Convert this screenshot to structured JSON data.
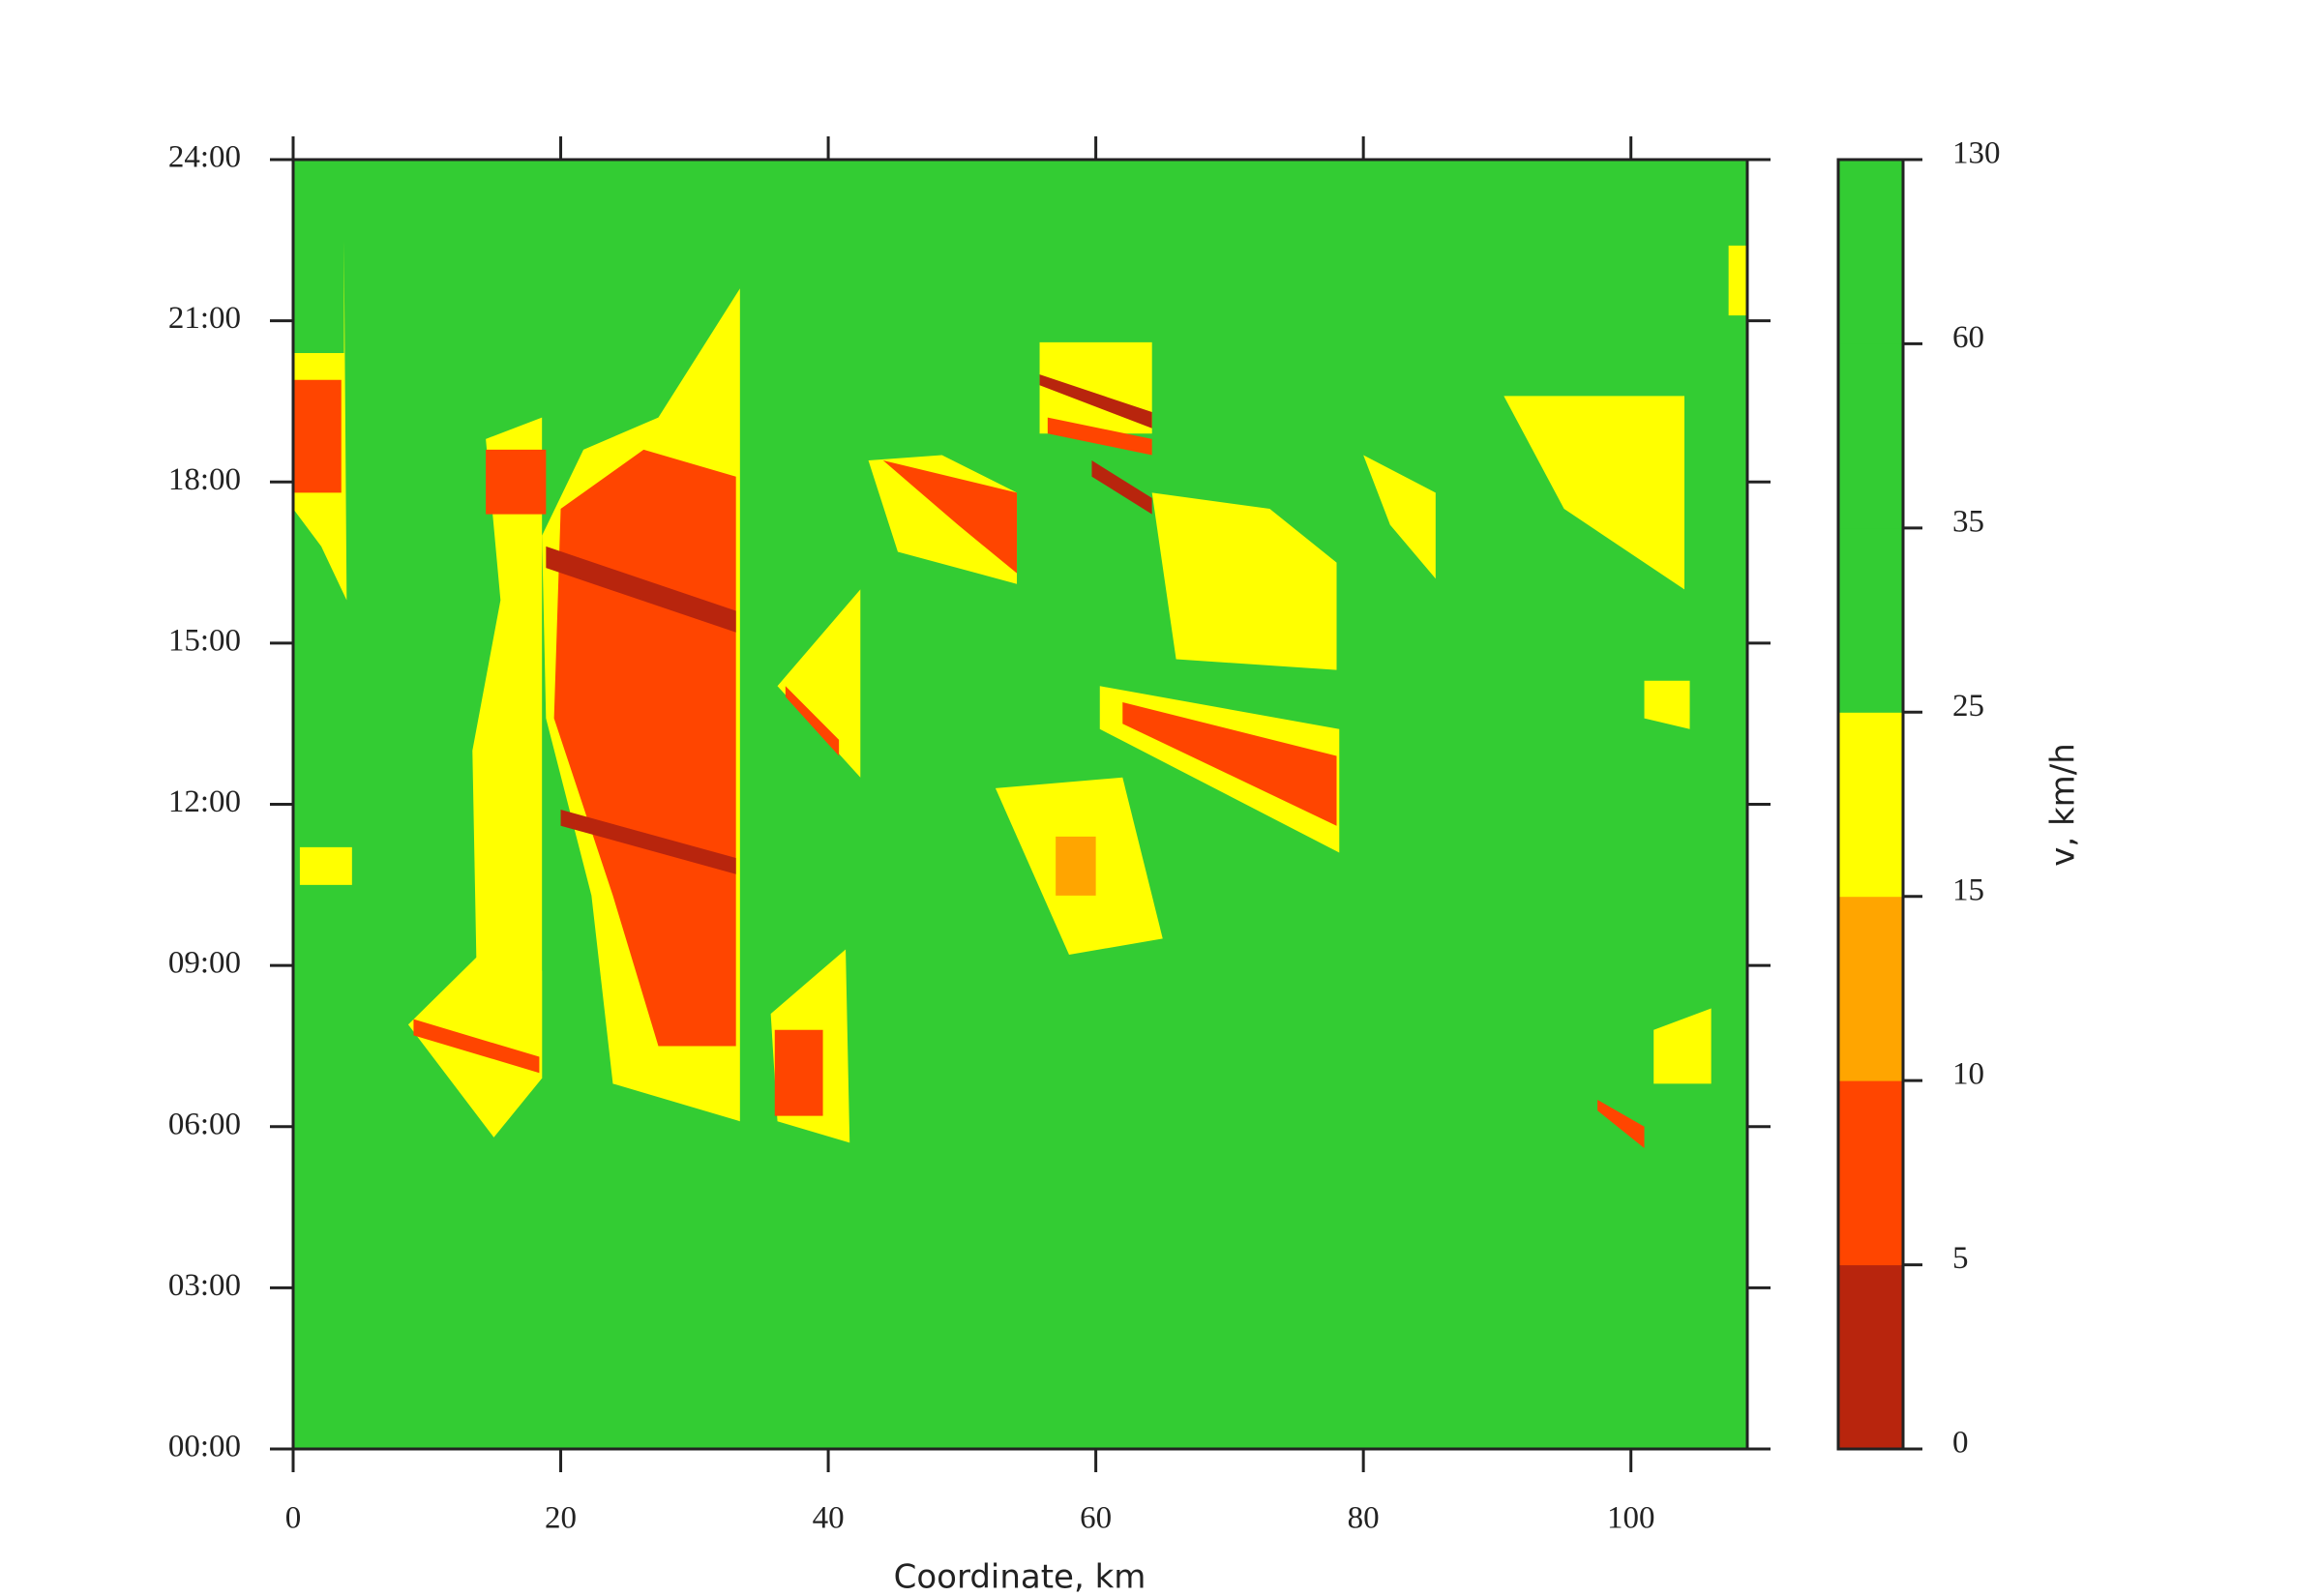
{
  "chart_data": {
    "type": "heatmap",
    "xlabel": "Coordinate, km",
    "xlim": [
      0,
      108.7
    ],
    "xticks": [
      0,
      20,
      40,
      60,
      80,
      100
    ],
    "ylim": [
      0,
      24
    ],
    "yticks": [
      {
        "value": 0,
        "label": "00:00"
      },
      {
        "value": 3,
        "label": "03:00"
      },
      {
        "value": 6,
        "label": "06:00"
      },
      {
        "value": 9,
        "label": "09:00"
      },
      {
        "value": 12,
        "label": "12:00"
      },
      {
        "value": 15,
        "label": "15:00"
      },
      {
        "value": 18,
        "label": "18:00"
      },
      {
        "value": 21,
        "label": "21:00"
      },
      {
        "value": 24,
        "label": "24:00"
      }
    ],
    "colorbar": {
      "label": "v, km/h",
      "bounds": [
        0,
        5,
        10,
        15,
        25,
        35,
        60,
        130
      ],
      "colors": [
        "#b8250d",
        "#ff4500",
        "#ffa500",
        "#ffff00",
        "#33cc33",
        "#33cc33",
        "#33cc33"
      ]
    },
    "patches": [
      {
        "x": [
          0,
          108.7,
          108.7,
          0
        ],
        "y": [
          0,
          0,
          24,
          24
        ],
        "value": 70
      },
      {
        "x": [
          23.9,
          33.4,
          33.4,
          27.3,
          21.7,
          18.6,
          18.9,
          22.3
        ],
        "y": [
          6.8,
          6.1,
          21.6,
          19.2,
          18.6,
          17.0,
          13.6,
          10.3
        ],
        "value": 20
      },
      {
        "x": [
          27.3,
          33.1,
          33.1,
          26.2,
          20.0,
          19.5,
          23.9
        ],
        "y": [
          7.5,
          7.5,
          18.1,
          18.6,
          17.5,
          13.6,
          10.3
        ],
        "value": 8
      },
      {
        "x": [
          20.0,
          33.1,
          33.1,
          20.0
        ],
        "y": [
          11.9,
          11.0,
          10.7,
          11.6
        ],
        "value": 3
      },
      {
        "x": [
          18.9,
          33.1,
          33.1,
          18.9
        ],
        "y": [
          16.8,
          15.6,
          15.2,
          16.4
        ],
        "value": 4
      },
      {
        "x": [
          14.4,
          18.6,
          18.6,
          13.9,
          13.4,
          15.5
        ],
        "y": [
          18.8,
          19.2,
          6.9,
          6.4,
          13.0,
          15.8
        ],
        "value": 20
      },
      {
        "x": [
          14.4,
          18.9,
          18.9,
          14.4
        ],
        "y": [
          18.6,
          18.6,
          17.4,
          17.4
        ],
        "value": 8
      },
      {
        "x": [
          8.6,
          13.9,
          18.6,
          18.6,
          15.0
        ],
        "y": [
          7.9,
          9.2,
          8.9,
          6.9,
          5.8
        ],
        "value": 20
      },
      {
        "x": [
          9.0,
          18.4,
          18.4,
          9.0
        ],
        "y": [
          8.0,
          7.3,
          7.0,
          7.7
        ],
        "value": 8
      },
      {
        "x": [
          0,
          3.8,
          3.8,
          4.0,
          2.1,
          0
        ],
        "y": [
          20.4,
          20.4,
          22.5,
          15.8,
          16.8,
          17.5
        ],
        "value": 20
      },
      {
        "x": [
          0,
          3.6,
          3.6,
          0
        ],
        "y": [
          19.9,
          19.9,
          17.8,
          17.8
        ],
        "value": 8
      },
      {
        "x": [
          36.2,
          42.4,
          42.4
        ],
        "y": [
          14.2,
          16.0,
          12.5
        ],
        "value": 20
      },
      {
        "x": [
          36.8,
          40.8,
          40.8,
          36.8
        ],
        "y": [
          14.2,
          13.2,
          12.9,
          14.0
        ],
        "value": 8
      },
      {
        "x": [
          35.7,
          41.3,
          41.6,
          36.2
        ],
        "y": [
          8.1,
          9.3,
          5.7,
          6.1
        ],
        "value": 20
      },
      {
        "x": [
          36.0,
          39.6,
          39.6,
          36.0
        ],
        "y": [
          7.8,
          7.8,
          6.2,
          6.2
        ],
        "value": 8
      },
      {
        "x": [
          43.0,
          48.5,
          54.1,
          54.1,
          45.2
        ],
        "y": [
          18.4,
          18.5,
          17.8,
          16.1,
          16.7
        ],
        "value": 20
      },
      {
        "x": [
          44.1,
          54.1,
          54.1,
          49.7
        ],
        "y": [
          18.4,
          17.8,
          16.3,
          17.2
        ],
        "value": 8
      },
      {
        "x": [
          55.8,
          64.2,
          64.2,
          55.8
        ],
        "y": [
          20.6,
          20.6,
          18.9,
          18.9
        ],
        "value": 20
      },
      {
        "x": [
          55.8,
          64.2,
          64.2,
          55.8
        ],
        "y": [
          20.0,
          19.3,
          19.0,
          19.8
        ],
        "value": 3
      },
      {
        "x": [
          56.4,
          64.2,
          64.2,
          56.4
        ],
        "y": [
          19.2,
          18.8,
          18.5,
          18.9
        ],
        "value": 8
      },
      {
        "x": [
          59.7,
          64.2,
          64.2,
          59.7
        ],
        "y": [
          18.4,
          17.7,
          17.4,
          18.1
        ],
        "value": 3
      },
      {
        "x": [
          60.3,
          78.2,
          78.2,
          60.3
        ],
        "y": [
          14.2,
          13.4,
          11.1,
          13.4
        ],
        "value": 20
      },
      {
        "x": [
          62.0,
          78.0,
          78.0,
          62.0
        ],
        "y": [
          13.9,
          12.9,
          11.6,
          13.5
        ],
        "value": 8
      },
      {
        "x": [
          52.5,
          62.0,
          65.0,
          58.0
        ],
        "y": [
          12.3,
          12.5,
          9.5,
          9.2
        ],
        "value": 20
      },
      {
        "x": [
          57.0,
          60.0,
          60.0,
          57.0
        ],
        "y": [
          11.4,
          11.4,
          10.3,
          10.3
        ],
        "value": 12
      },
      {
        "x": [
          64.2,
          73.0,
          78.0,
          78.0,
          66.0
        ],
        "y": [
          17.8,
          17.5,
          16.5,
          14.5,
          14.7
        ],
        "value": 20
      },
      {
        "x": [
          80.0,
          85.4,
          85.4,
          82.0
        ],
        "y": [
          18.5,
          17.8,
          16.2,
          17.2
        ],
        "value": 20
      },
      {
        "x": [
          90.5,
          104.0,
          104.0,
          95.0
        ],
        "y": [
          19.6,
          19.6,
          16.0,
          17.5
        ],
        "value": 20
      },
      {
        "x": [
          101.7,
          106.0,
          106.0,
          101.7
        ],
        "y": [
          7.8,
          8.2,
          6.8,
          6.8
        ],
        "value": 20
      },
      {
        "x": [
          97.5,
          101.0,
          101.0,
          97.5
        ],
        "y": [
          6.5,
          6.0,
          5.6,
          6.3
        ],
        "value": 8
      },
      {
        "x": [
          101.0,
          104.4,
          104.4,
          101.0
        ],
        "y": [
          14.3,
          14.3,
          13.4,
          13.6
        ],
        "value": 20
      },
      {
        "x": [
          0.5,
          4.4,
          4.4,
          0.5
        ],
        "y": [
          11.2,
          11.2,
          10.5,
          10.5
        ],
        "value": 20
      },
      {
        "x": [
          107.3,
          108.7,
          108.7,
          107.3
        ],
        "y": [
          22.4,
          22.4,
          21.1,
          21.1
        ],
        "value": 20
      }
    ]
  }
}
